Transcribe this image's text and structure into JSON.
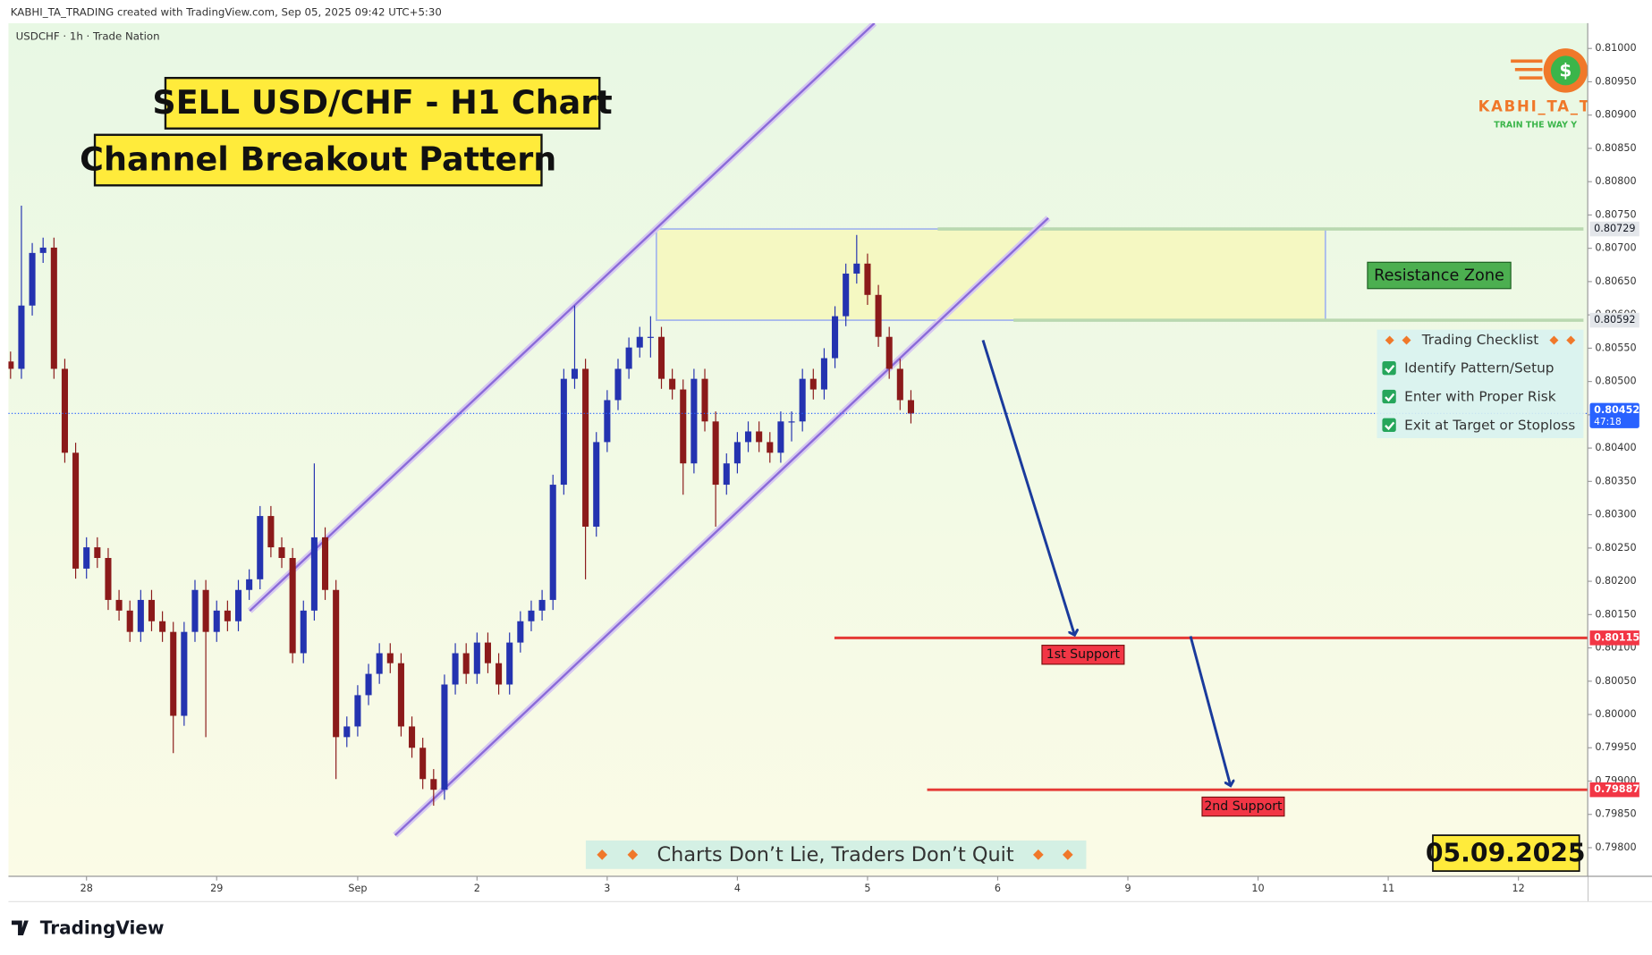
{
  "header": {
    "watermark": "KABHI_TA_TRADING created with TradingView.com, Sep 05, 2025 09:42 UTC+5:30",
    "symbol": "USDCHF · 1h · Trade Nation"
  },
  "logo": {
    "icon": "$",
    "name": "KABHI_TA_T",
    "tagline": "TRAIN THE WAY Y"
  },
  "chart_data": {
    "type": "candlestick",
    "title": "SELL USD/CHF - H1 Chart",
    "subtitle": "Channel Breakout Pattern",
    "up_color": "#2433b0",
    "down_color": "#8b1a1a",
    "x": [
      0,
      2,
      4,
      6,
      8,
      10,
      12,
      14,
      16,
      18,
      20,
      22,
      24,
      26,
      28,
      30,
      32,
      34,
      36,
      38,
      40,
      42,
      44,
      46,
      48,
      50,
      52,
      54,
      56,
      58,
      60,
      62,
      64,
      66,
      68,
      70,
      72,
      74,
      76,
      78,
      80,
      82,
      84,
      86,
      88,
      90,
      92,
      94,
      96,
      98,
      100,
      102,
      104,
      106,
      108,
      110,
      112,
      114,
      116,
      118,
      120,
      122,
      124,
      126,
      128,
      130,
      132,
      134,
      136,
      138,
      140,
      142,
      144,
      146,
      148,
      150,
      152,
      154,
      156,
      158,
      160,
      162,
      164,
      166
    ],
    "ohlc": [
      [
        0.8053,
        0.80545,
        0.80504,
        0.80519
      ],
      [
        0.80519,
        0.80764,
        0.80504,
        0.80614
      ],
      [
        0.80614,
        0.80708,
        0.80599,
        0.80693
      ],
      [
        0.80693,
        0.80716,
        0.80678,
        0.80701
      ],
      [
        0.80701,
        0.80716,
        0.80504,
        0.80519
      ],
      [
        0.80519,
        0.80534,
        0.80378,
        0.80393
      ],
      [
        0.80393,
        0.80408,
        0.80204,
        0.80219
      ],
      [
        0.80219,
        0.80266,
        0.80204,
        0.80251
      ],
      [
        0.80251,
        0.80266,
        0.8022,
        0.80235
      ],
      [
        0.80235,
        0.8025,
        0.80157,
        0.80172
      ],
      [
        0.80172,
        0.80187,
        0.80141,
        0.80156
      ],
      [
        0.80156,
        0.80171,
        0.80109,
        0.80124
      ],
      [
        0.80124,
        0.80187,
        0.80109,
        0.80172
      ],
      [
        0.80172,
        0.80187,
        0.80125,
        0.8014
      ],
      [
        0.8014,
        0.80155,
        0.80109,
        0.80124
      ],
      [
        0.80124,
        0.80139,
        0.79942,
        0.79998
      ],
      [
        0.79998,
        0.80139,
        0.79983,
        0.80124
      ],
      [
        0.80124,
        0.80202,
        0.80109,
        0.80187
      ],
      [
        0.80187,
        0.80202,
        0.79966,
        0.80124
      ],
      [
        0.80124,
        0.80171,
        0.80109,
        0.80156
      ],
      [
        0.80156,
        0.80171,
        0.80125,
        0.8014
      ],
      [
        0.8014,
        0.80202,
        0.80125,
        0.80187
      ],
      [
        0.80187,
        0.80218,
        0.80172,
        0.80203
      ],
      [
        0.80203,
        0.80313,
        0.80188,
        0.80298
      ],
      [
        0.80298,
        0.80313,
        0.80236,
        0.80251
      ],
      [
        0.80251,
        0.80266,
        0.8022,
        0.80235
      ],
      [
        0.80235,
        0.8025,
        0.80077,
        0.80092
      ],
      [
        0.80092,
        0.80171,
        0.80077,
        0.80156
      ],
      [
        0.80156,
        0.80377,
        0.80141,
        0.80266
      ],
      [
        0.80266,
        0.80281,
        0.80172,
        0.80187
      ],
      [
        0.80187,
        0.80202,
        0.79903,
        0.79966
      ],
      [
        0.79966,
        0.79997,
        0.79951,
        0.79982
      ],
      [
        0.79982,
        0.80044,
        0.79967,
        0.80029
      ],
      [
        0.80029,
        0.80076,
        0.80014,
        0.80061
      ],
      [
        0.80061,
        0.80107,
        0.80046,
        0.80092
      ],
      [
        0.80092,
        0.80107,
        0.80062,
        0.80077
      ],
      [
        0.80077,
        0.80092,
        0.79967,
        0.79982
      ],
      [
        0.79982,
        0.79997,
        0.79935,
        0.7995
      ],
      [
        0.7995,
        0.79965,
        0.79888,
        0.79903
      ],
      [
        0.79903,
        0.79918,
        0.79863,
        0.79887
      ],
      [
        0.79887,
        0.8006,
        0.79872,
        0.80045
      ],
      [
        0.80045,
        0.80107,
        0.8003,
        0.80092
      ],
      [
        0.80092,
        0.80107,
        0.80046,
        0.80061
      ],
      [
        0.80061,
        0.80123,
        0.80046,
        0.80108
      ],
      [
        0.80108,
        0.80123,
        0.80062,
        0.80077
      ],
      [
        0.80077,
        0.80092,
        0.8003,
        0.80045
      ],
      [
        0.80045,
        0.80123,
        0.8003,
        0.80108
      ],
      [
        0.80108,
        0.80155,
        0.80093,
        0.8014
      ],
      [
        0.8014,
        0.80171,
        0.80125,
        0.80156
      ],
      [
        0.80156,
        0.80187,
        0.80141,
        0.80172
      ],
      [
        0.80172,
        0.8036,
        0.80157,
        0.80345
      ],
      [
        0.80345,
        0.80519,
        0.8033,
        0.80504
      ],
      [
        0.80504,
        0.80614,
        0.80489,
        0.80519
      ],
      [
        0.80519,
        0.80534,
        0.80203,
        0.80282
      ],
      [
        0.80282,
        0.80424,
        0.80267,
        0.80409
      ],
      [
        0.80409,
        0.80487,
        0.80394,
        0.80472
      ],
      [
        0.80472,
        0.80534,
        0.80457,
        0.80519
      ],
      [
        0.80519,
        0.80566,
        0.80504,
        0.80551
      ],
      [
        0.80551,
        0.80582,
        0.80536,
        0.80567
      ],
      [
        0.80567,
        0.80598,
        0.80536,
        0.80567
      ],
      [
        0.80567,
        0.80582,
        0.80489,
        0.80504
      ],
      [
        0.80504,
        0.80519,
        0.80473,
        0.80488
      ],
      [
        0.80488,
        0.80503,
        0.8033,
        0.80377
      ],
      [
        0.80377,
        0.80519,
        0.80362,
        0.80504
      ],
      [
        0.80504,
        0.80519,
        0.80425,
        0.8044
      ],
      [
        0.8044,
        0.80455,
        0.80282,
        0.80345
      ],
      [
        0.80345,
        0.80392,
        0.8033,
        0.80377
      ],
      [
        0.80377,
        0.80424,
        0.80362,
        0.80409
      ],
      [
        0.80409,
        0.8044,
        0.80394,
        0.80425
      ],
      [
        0.80425,
        0.8044,
        0.80394,
        0.80409
      ],
      [
        0.80409,
        0.80424,
        0.80378,
        0.80393
      ],
      [
        0.80393,
        0.80455,
        0.80378,
        0.8044
      ],
      [
        0.8044,
        0.80455,
        0.8041,
        0.8044
      ],
      [
        0.8044,
        0.80519,
        0.80425,
        0.80504
      ],
      [
        0.80504,
        0.80519,
        0.80473,
        0.80488
      ],
      [
        0.80488,
        0.8055,
        0.80473,
        0.80535
      ],
      [
        0.80535,
        0.80613,
        0.8052,
        0.80598
      ],
      [
        0.80598,
        0.80677,
        0.80583,
        0.80662
      ],
      [
        0.80662,
        0.8072,
        0.80647,
        0.80677
      ],
      [
        0.80677,
        0.80692,
        0.80615,
        0.8063
      ],
      [
        0.8063,
        0.80645,
        0.80552,
        0.80567
      ],
      [
        0.80567,
        0.80582,
        0.80504,
        0.80519
      ],
      [
        0.80519,
        0.80534,
        0.80457,
        0.80472
      ],
      [
        0.80472,
        0.80487,
        0.80437,
        0.80452
      ]
    ],
    "xlim": [
      0,
      290
    ],
    "xticks": [
      {
        "value": 14,
        "label": "28"
      },
      {
        "value": 38,
        "label": "29"
      },
      {
        "value": 64,
        "label": "Sep"
      },
      {
        "value": 86,
        "label": "2"
      },
      {
        "value": 110,
        "label": "3"
      },
      {
        "value": 134,
        "label": "4"
      },
      {
        "value": 158,
        "label": "5"
      },
      {
        "value": 182,
        "label": "6"
      },
      {
        "value": 206,
        "label": "9"
      },
      {
        "value": 230,
        "label": "10"
      },
      {
        "value": 254,
        "label": "11"
      },
      {
        "value": 278,
        "label": "12"
      }
    ],
    "ylim": [
      0.79757,
      0.81038
    ],
    "yticks": [
      {
        "value": 0.81,
        "label": "0.81000"
      },
      {
        "value": 0.8095,
        "label": "0.80950"
      },
      {
        "value": 0.809,
        "label": "0.80900"
      },
      {
        "value": 0.8085,
        "label": "0.80850"
      },
      {
        "value": 0.808,
        "label": "0.80800"
      },
      {
        "value": 0.8075,
        "label": "0.80750"
      },
      {
        "value": 0.807,
        "label": "0.80700"
      },
      {
        "value": 0.8065,
        "label": "0.80650"
      },
      {
        "value": 0.806,
        "label": "0.80600"
      },
      {
        "value": 0.8055,
        "label": "0.80550"
      },
      {
        "value": 0.805,
        "label": "0.80500"
      },
      {
        "value": 0.8045,
        "label": "0.80450"
      },
      {
        "value": 0.804,
        "label": "0.80400"
      },
      {
        "value": 0.8035,
        "label": "0.80350"
      },
      {
        "value": 0.803,
        "label": "0.80300"
      },
      {
        "value": 0.8025,
        "label": "0.80250"
      },
      {
        "value": 0.802,
        "label": "0.80200"
      },
      {
        "value": 0.8015,
        "label": "0.80150"
      },
      {
        "value": 0.801,
        "label": "0.80100"
      },
      {
        "value": 0.8005,
        "label": "0.80050"
      },
      {
        "value": 0.8,
        "label": "0.80000"
      },
      {
        "value": 0.7995,
        "label": "0.79950"
      },
      {
        "value": 0.799,
        "label": "0.79900"
      },
      {
        "value": 0.7985,
        "label": "0.79850"
      },
      {
        "value": 0.798,
        "label": "0.79800"
      }
    ],
    "resistance_zone": {
      "label": "Resistance Zone",
      "values": [
        0.80592,
        0.80729
      ]
    },
    "supports": [
      {
        "label": "1st Support",
        "value": 0.80115
      },
      {
        "label": "2nd Support",
        "value": 0.79887
      }
    ],
    "last_price": {
      "value": 0.80452,
      "countdown": "47:18"
    }
  },
  "checklist": {
    "title": "Trading Checklist",
    "items": [
      "Identify Pattern/Setup",
      "Enter with Proper Risk",
      "Exit at Target or Stoploss"
    ]
  },
  "slogan": "Charts Don’t Lie, Traders Don’t Quit",
  "date": "05.09.2025",
  "footer": "TradingView"
}
